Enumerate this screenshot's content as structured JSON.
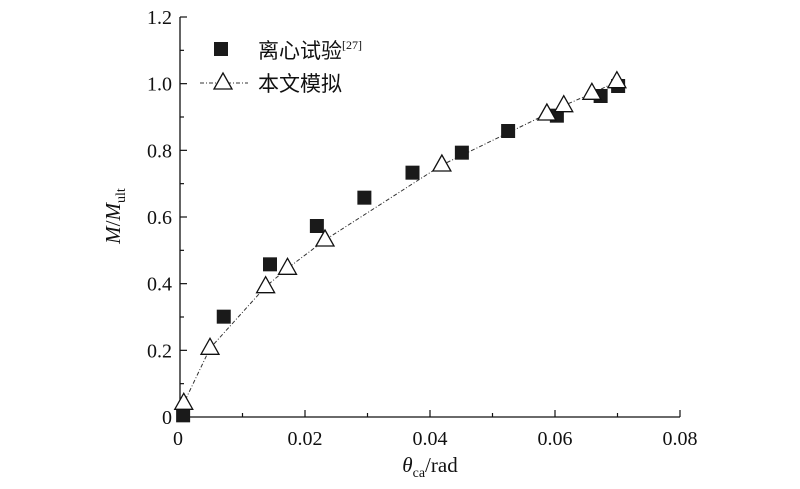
{
  "chart_data": {
    "type": "scatter",
    "xlabel": "θ",
    "xlabel_sub": "ca",
    "xlabel_unit": "/rad",
    "ylabel_num": "M",
    "ylabel_den": "M",
    "ylabel_sub": "ult",
    "xlim": [
      0,
      0.08
    ],
    "ylim": [
      0,
      1.2
    ],
    "xticks": [
      0,
      0.02,
      0.04,
      0.06,
      0.08
    ],
    "xtick_labels": [
      "0",
      "0.02",
      "0.04",
      "0.06",
      "0.08"
    ],
    "yticks": [
      0,
      0.2,
      0.4,
      0.6,
      0.8,
      1.0,
      1.2
    ],
    "ytick_labels": [
      "0",
      "0.2",
      "0.4",
      "0.6",
      "0.8",
      "1.0",
      "1.2"
    ],
    "legend_position": "top-left",
    "series": [
      {
        "name": "离心试验",
        "name_sup": "[27]",
        "marker": "filled-square",
        "line": false,
        "x": [
          0.0005,
          0.007,
          0.0144,
          0.0219,
          0.0295,
          0.0372,
          0.0451,
          0.0525,
          0.0603,
          0.0673,
          0.0701
        ],
        "y": [
          0.005,
          0.301,
          0.458,
          0.573,
          0.658,
          0.733,
          0.793,
          0.858,
          0.904,
          0.963,
          0.993
        ]
      },
      {
        "name": "本文模拟",
        "marker": "open-triangle",
        "line": "dash-dot",
        "x": [
          0.0006,
          0.0048,
          0.0137,
          0.0172,
          0.0232,
          0.0419,
          0.0587,
          0.0614,
          0.0659,
          0.0699
        ],
        "y": [
          0.041,
          0.206,
          0.391,
          0.446,
          0.531,
          0.756,
          0.909,
          0.934,
          0.971,
          1.006
        ]
      }
    ]
  }
}
